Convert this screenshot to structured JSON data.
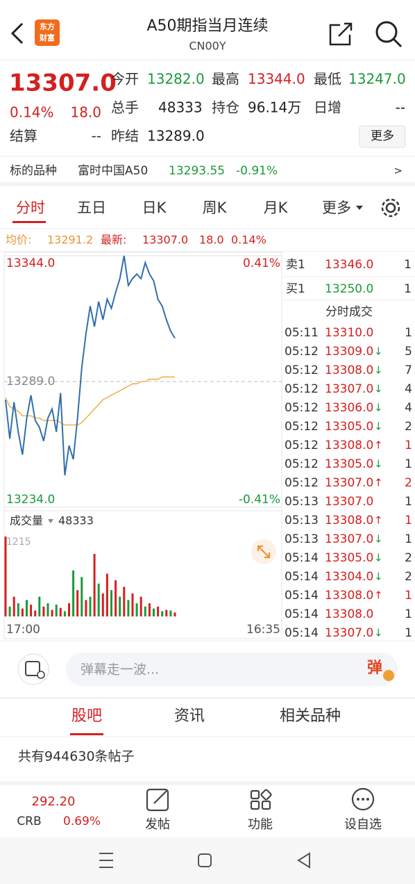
{
  "header": {
    "logo": [
      "东方",
      "财富"
    ],
    "title": "A50期指当月连续",
    "code": "CN00Y"
  },
  "quote": {
    "price": "13307.0",
    "change_pct": "0.14%",
    "change": "18.0",
    "settle_label": "结算",
    "settle": "--",
    "open_label": "今开",
    "open": "13282.0",
    "high_label": "最高",
    "high": "13344.0",
    "low_label": "最低",
    "low": "13247.0",
    "volume_label": "总手",
    "volume": "48333",
    "oi_label": "持仓",
    "oi": "96.14万",
    "daily_inc_label": "日增",
    "daily_inc": "--",
    "prev_settle_label": "昨结",
    "prev_settle": "13289.0",
    "more": "更多"
  },
  "underlying": {
    "label": "标的品种",
    "name": "富时中国A50",
    "price": "13293.55",
    "change": "-0.91%",
    "arrow": ">"
  },
  "tabs": [
    "分时",
    "五日",
    "日K",
    "周K",
    "月K",
    "更多"
  ],
  "info": {
    "avg_label": "均价:",
    "avg": "13291.2",
    "last_label": "最新:",
    "last": "13307.0",
    "change": "18.0",
    "change_pct": "0.14%"
  },
  "chart_data": {
    "type": "line",
    "ylim": [
      13234,
      13344
    ],
    "yticks": [
      {
        "value": 13344,
        "label": "13344.0"
      },
      {
        "value": 13289,
        "label": "13289.0"
      },
      {
        "value": 13234,
        "label": "13234.0"
      }
    ],
    "y2lim": [
      -0.41,
      0.41
    ],
    "y2ticks": [
      {
        "value": 0.41,
        "label": "0.41%"
      },
      {
        "value": -0.41,
        "label": "-0.41%"
      }
    ],
    "x_labels": [
      "17:00",
      "16:35"
    ],
    "series": [
      {
        "color": "#2f6fad",
        "values": [
          13281,
          13264,
          13280,
          13267,
          13257,
          13273,
          13283,
          13272,
          13269,
          13263,
          13273,
          13277,
          13267,
          13284,
          13248,
          13261,
          13255,
          13273,
          13295,
          13310,
          13322,
          13313,
          13324,
          13316,
          13325,
          13321,
          13328,
          13334,
          13344,
          13331,
          13334,
          13336,
          13334,
          13341,
          13336,
          13333,
          13325,
          13322,
          13316,
          13311,
          13308
        ]
      },
      {
        "color": "#f0a030",
        "values": [
          13282,
          13278,
          13277,
          13276,
          13274,
          13274,
          13274,
          13273,
          13273,
          13272,
          13272,
          13272,
          13272,
          13271,
          13270,
          13270,
          13270,
          13270,
          13271,
          13273,
          13275,
          13277,
          13279,
          13281,
          13282,
          13283,
          13284,
          13285,
          13286,
          13287,
          13288,
          13288,
          13289,
          13289,
          13290,
          13290,
          13290,
          13291,
          13291,
          13291,
          13291
        ]
      }
    ],
    "volume": {
      "label": "成交量",
      "total": 48333,
      "ylim": [
        0,
        1215
      ],
      "yticks": [
        1215
      ],
      "values": [
        1215,
        150,
        300,
        200,
        120,
        250,
        180,
        90,
        300,
        150,
        200,
        100,
        180,
        130,
        80,
        200,
        700,
        400,
        600,
        250,
        300,
        950,
        500,
        350,
        650,
        400,
        550,
        300,
        450,
        250,
        350,
        200,
        300,
        150,
        200,
        120,
        150,
        80,
        100,
        90,
        60
      ],
      "colors": [
        "#d42020",
        "#1a9a3a",
        "#d42020",
        "#1a9a3a",
        "#d42020",
        "#1a9a3a",
        "#d42020",
        "#d42020",
        "#1a9a3a",
        "#d42020",
        "#1a9a3a",
        "#d42020",
        "#1a9a3a",
        "#d42020",
        "#1a9a3a",
        "#d42020",
        "#1a9a3a",
        "#d42020",
        "#1a9a3a",
        "#d42020",
        "#1a9a3a",
        "#d42020",
        "#1a9a3a",
        "#d42020",
        "#d42020",
        "#1a9a3a",
        "#d42020",
        "#1a9a3a",
        "#d42020",
        "#1a9a3a",
        "#d42020",
        "#1a9a3a",
        "#d42020",
        "#1a9a3a",
        "#d42020",
        "#1a9a3a",
        "#d42020",
        "#1a9a3a",
        "#d42020",
        "#1a9a3a",
        "#d42020"
      ]
    }
  },
  "order_book": {
    "ask": {
      "label": "卖1",
      "price": "13346.0",
      "qty": "1"
    },
    "bid": {
      "label": "买1",
      "price": "13250.0",
      "qty": "1"
    }
  },
  "trades": {
    "title": "分时成交",
    "rows": [
      [
        "05:11",
        "13310.0",
        null,
        "1"
      ],
      [
        "05:12",
        "13309.0",
        "↓",
        "5"
      ],
      [
        "05:12",
        "13308.0",
        "↓",
        "7"
      ],
      [
        "05:12",
        "13307.0",
        "↓",
        "4"
      ],
      [
        "05:12",
        "13306.0",
        "↓",
        "4"
      ],
      [
        "05:12",
        "13305.0",
        "↓",
        "2"
      ],
      [
        "05:12",
        "13308.0",
        "↑",
        "1"
      ],
      [
        "05:12",
        "13305.0",
        "↓",
        "1"
      ],
      [
        "05:12",
        "13307.0",
        "↑",
        "2"
      ],
      [
        "05:13",
        "13307.0",
        null,
        "1"
      ],
      [
        "05:13",
        "13308.0",
        "↑",
        "1"
      ],
      [
        "05:13",
        "13307.0",
        "↓",
        "1"
      ],
      [
        "05:14",
        "13305.0",
        "↓",
        "2"
      ],
      [
        "05:14",
        "13304.0",
        "↓",
        "2"
      ],
      [
        "05:14",
        "13308.0",
        "↑",
        "1"
      ],
      [
        "05:14",
        "13308.0",
        null,
        "1"
      ],
      [
        "05:14",
        "13307.0",
        "↓",
        "1"
      ]
    ]
  },
  "comment": {
    "placeholder": "弹幕走一波...",
    "button": "弹"
  },
  "feed_tabs": [
    "股吧",
    "资讯",
    "相关品种"
  ],
  "post_count": "共有944630条帖子",
  "bottom_bar": {
    "index_price": "292.20",
    "index_name": "CRB",
    "index_change": "0.69%",
    "actions": [
      "发帖",
      "功能",
      "设自选"
    ]
  }
}
